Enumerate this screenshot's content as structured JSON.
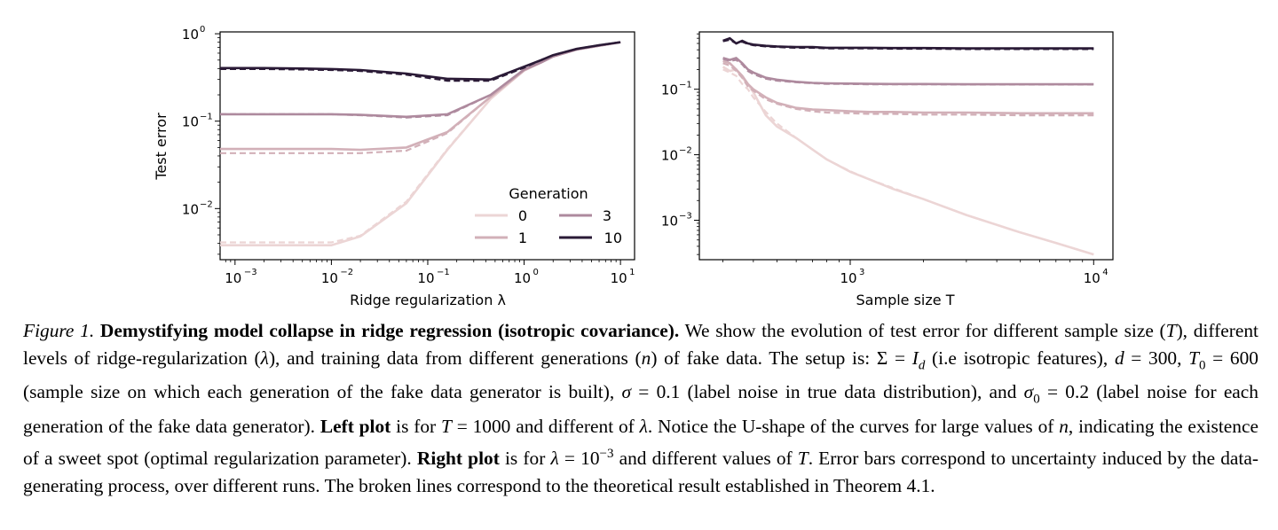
{
  "figure": {
    "legend": {
      "title": "Generation",
      "entries": [
        {
          "label": "0",
          "color": "#ecd5d5"
        },
        {
          "label": "1",
          "color": "#d2b0b8"
        },
        {
          "label": "3",
          "color": "#ae8a9e"
        },
        {
          "label": "10",
          "color": "#2a1a36"
        }
      ]
    },
    "style": {
      "solid": "empirical",
      "dashed": "theory"
    }
  },
  "chart_data": [
    {
      "type": "line",
      "panel": "left",
      "xscale": "log",
      "yscale": "log",
      "xlabel": "Ridge regularization λ",
      "ylabel": "Test error",
      "xlim": [
        0.0007,
        14
      ],
      "ylim": [
        0.0026,
        1.05
      ],
      "xticks": [
        {
          "base": "10",
          "exp": "−3",
          "value": 0.001
        },
        {
          "base": "10",
          "exp": "−2",
          "value": 0.01
        },
        {
          "base": "10",
          "exp": "−1",
          "value": 0.1
        },
        {
          "base": "10",
          "exp": "0",
          "value": 1
        },
        {
          "base": "10",
          "exp": "1",
          "value": 10
        }
      ],
      "yticks": [
        {
          "base": "10",
          "exp": "−2",
          "value": 0.01
        },
        {
          "base": "10",
          "exp": "−1",
          "value": 0.1
        },
        {
          "base": "10",
          "exp": "0",
          "value": 1
        }
      ],
      "x": [
        0.0007,
        0.001,
        0.002,
        0.005,
        0.01,
        0.02,
        0.06,
        0.16,
        0.45,
        1.0,
        1.5,
        2.0,
        3.5,
        6,
        10
      ],
      "series": [
        {
          "name": "0",
          "empirical": [
            0.0038,
            0.0038,
            0.0038,
            0.0038,
            0.0038,
            0.0048,
            0.0115,
            0.047,
            0.18,
            0.38,
            0.47,
            0.55,
            0.66,
            0.73,
            0.8
          ],
          "theory": [
            0.0041,
            0.0041,
            0.0041,
            0.0041,
            0.0041,
            0.0049,
            0.012,
            0.048,
            0.18,
            0.38,
            0.47,
            0.55,
            0.66,
            0.73,
            0.8
          ]
        },
        {
          "name": "1",
          "empirical": [
            0.048,
            0.048,
            0.048,
            0.048,
            0.048,
            0.047,
            0.05,
            0.075,
            0.19,
            0.38,
            0.47,
            0.55,
            0.66,
            0.73,
            0.8
          ],
          "theory": [
            0.043,
            0.043,
            0.043,
            0.043,
            0.043,
            0.043,
            0.046,
            0.073,
            0.19,
            0.38,
            0.47,
            0.55,
            0.66,
            0.73,
            0.8
          ]
        },
        {
          "name": "3",
          "empirical": [
            0.12,
            0.12,
            0.12,
            0.12,
            0.12,
            0.118,
            0.112,
            0.12,
            0.2,
            0.39,
            0.47,
            0.55,
            0.66,
            0.73,
            0.8
          ],
          "theory": [
            0.12,
            0.12,
            0.12,
            0.12,
            0.12,
            0.117,
            0.11,
            0.117,
            0.2,
            0.39,
            0.47,
            0.55,
            0.66,
            0.73,
            0.8
          ]
        },
        {
          "name": "10",
          "empirical": [
            0.405,
            0.405,
            0.405,
            0.4,
            0.395,
            0.385,
            0.35,
            0.305,
            0.3,
            0.42,
            0.5,
            0.57,
            0.67,
            0.74,
            0.8
          ],
          "theory": [
            0.395,
            0.395,
            0.395,
            0.39,
            0.385,
            0.375,
            0.34,
            0.29,
            0.29,
            0.41,
            0.5,
            0.57,
            0.67,
            0.74,
            0.8
          ]
        }
      ]
    },
    {
      "type": "line",
      "panel": "right",
      "xscale": "log",
      "yscale": "log",
      "xlabel": "Sample size T",
      "ylabel": "",
      "xlim": [
        240,
        12000
      ],
      "ylim": [
        0.00025,
        0.75
      ],
      "xticks": [
        {
          "base": "10",
          "exp": "3",
          "value": 1000
        },
        {
          "base": "10",
          "exp": "4",
          "value": 10000
        }
      ],
      "yticks": [
        {
          "base": "10",
          "exp": "−3",
          "value": 0.001
        },
        {
          "base": "10",
          "exp": "−2",
          "value": 0.01
        },
        {
          "base": "10",
          "exp": "−1",
          "value": 0.1
        }
      ],
      "x": [
        300,
        320,
        340,
        360,
        380,
        400,
        450,
        500,
        600,
        700,
        800,
        1000,
        1200,
        1500,
        2000,
        3000,
        5000,
        7000,
        10000
      ],
      "series": [
        {
          "name": "0",
          "empirical": [
            0.22,
            0.19,
            0.2,
            0.15,
            0.12,
            0.09,
            0.04,
            0.027,
            0.018,
            0.012,
            0.0085,
            0.0055,
            0.0042,
            0.003,
            0.0021,
            0.0012,
            0.00065,
            0.00045,
            0.0003
          ],
          "theory": [
            0.2,
            0.18,
            0.16,
            0.12,
            0.1,
            0.075,
            0.045,
            0.03,
            0.018,
            0.012,
            0.0085,
            0.0056,
            0.0042,
            0.0031,
            0.0021,
            0.0012,
            0.00065,
            0.00045,
            0.0003
          ]
        },
        {
          "name": "1",
          "empirical": [
            0.27,
            0.25,
            0.2,
            0.16,
            0.12,
            0.1,
            0.075,
            0.062,
            0.052,
            0.049,
            0.048,
            0.046,
            0.045,
            0.045,
            0.044,
            0.044,
            0.043,
            0.043,
            0.043
          ],
          "theory": [
            0.25,
            0.23,
            0.19,
            0.15,
            0.11,
            0.095,
            0.07,
            0.06,
            0.05,
            0.046,
            0.044,
            0.043,
            0.042,
            0.042,
            0.041,
            0.041,
            0.04,
            0.04,
            0.04
          ]
        },
        {
          "name": "3",
          "empirical": [
            0.3,
            0.28,
            0.3,
            0.25,
            0.2,
            0.18,
            0.15,
            0.14,
            0.13,
            0.125,
            0.123,
            0.122,
            0.121,
            0.12,
            0.12,
            0.119,
            0.119,
            0.119,
            0.119
          ],
          "theory": [
            0.29,
            0.27,
            0.28,
            0.24,
            0.19,
            0.17,
            0.145,
            0.135,
            0.128,
            0.123,
            0.121,
            0.12,
            0.119,
            0.119,
            0.119,
            0.118,
            0.118,
            0.118,
            0.118
          ]
        },
        {
          "name": "10",
          "empirical": [
            0.55,
            0.6,
            0.5,
            0.55,
            0.5,
            0.48,
            0.46,
            0.45,
            0.44,
            0.44,
            0.43,
            0.43,
            0.43,
            0.425,
            0.425,
            0.42,
            0.42,
            0.42,
            0.42
          ],
          "theory": [
            0.54,
            0.57,
            0.5,
            0.53,
            0.49,
            0.47,
            0.45,
            0.44,
            0.43,
            0.43,
            0.42,
            0.42,
            0.42,
            0.415,
            0.415,
            0.41,
            0.41,
            0.41,
            0.41
          ]
        }
      ]
    }
  ],
  "caption": {
    "label": "Figure 1.",
    "title": "Demystifying model collapse in ridge regression (isotropic covariance).",
    "t1": " We show the evolution of test error for different sample size (",
    "t2": "), different levels of ridge-regularization (",
    "t3": "), and training data from different generations (",
    "t4": ") of fake data. The setup is: ",
    "t5": " (i.e isotropic features), ",
    "t6": " (sample size on which each generation of the fake data generator is built), ",
    "t7": " (label noise in true data distribution), and ",
    "t8": " (label noise for each generation of the fake data generator). ",
    "left_plot": "Left plot",
    "t9": " is for ",
    "t10": " and different of ",
    "t11": ". Notice the U-shape of the curves for large values of ",
    "t12": ", indicating the existence of a sweet spot (optimal regularization parameter). ",
    "right_plot": "Right plot",
    "t13": " is for ",
    "t14": " and different values of ",
    "t15": ". Error bars correspond to uncertainty induced by the data-generating process, over different runs. The broken lines correspond to the theoretical result established in Theorem 4.1.",
    "sym_T": "T",
    "sym_lambda": "λ",
    "sym_n": "n",
    "sym_Sigma": "Σ = ",
    "sym_I": "I",
    "sym_d_sub": "d",
    "sym_d": "d",
    "eq_d": " = 300",
    "sym_T0": "T",
    "sub_0": "0",
    "eq_T0": " = 600",
    "sym_sigma": "σ",
    "eq_sigma": " = 0.1",
    "sym_sigma0": "σ",
    "sub_0b": "0",
    "eq_sigma0": " = 0.2",
    "eq_T1000": " = 1000",
    "eq_lambda_base": " = 10",
    "eq_lambda_exp": "−3"
  }
}
